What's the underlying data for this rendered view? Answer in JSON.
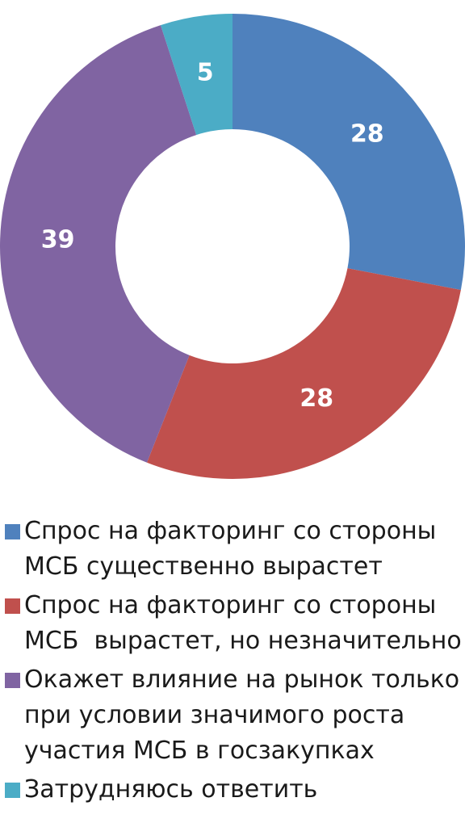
{
  "chart_data": {
    "type": "donut",
    "series": [
      {
        "name": "Спрос на факторинг со стороны\nМСБ существенно вырастет",
        "color": "#4f81bd",
        "values": [
          28
        ]
      },
      {
        "name": "Спрос на факторинг со стороны\nМСБ  вырастет, но незначительно",
        "color": "#c0504d",
        "values": [
          28
        ]
      },
      {
        "name": "Окажет влияние на рынок только\nпри условии значимого роста\nучастия МСБ в госзакупках",
        "color": "#8064a2",
        "values": [
          39
        ]
      },
      {
        "name": "Затрудняюсь ответить",
        "color": "#4bacc6",
        "values": [
          5
        ]
      }
    ]
  }
}
